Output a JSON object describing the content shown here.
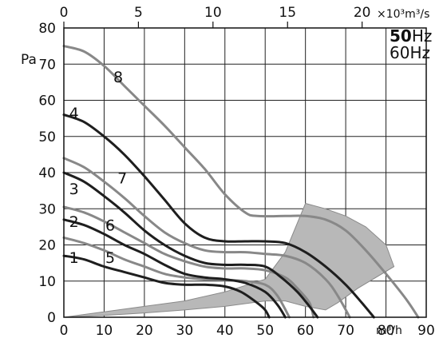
{
  "chart_data": {
    "type": "line",
    "ylabel": "Pa",
    "xunit": "m³/h",
    "top_unit": "×10³m³/s",
    "legend": [
      {
        "text": "50",
        "bold": true,
        "unit": "Hz"
      },
      {
        "text": "60",
        "bold": false,
        "unit": "Hz"
      }
    ],
    "xlim": [
      0,
      90
    ],
    "ylim": [
      0,
      80
    ],
    "x_ticks": [
      "0",
      "10",
      "20",
      "30",
      "40",
      "50",
      "60",
      "70",
      "80",
      "90"
    ],
    "y_ticks": [
      "0",
      "10",
      "20",
      "30",
      "40",
      "50",
      "60",
      "70",
      "80"
    ],
    "top_ticks": [
      "0",
      "5",
      "10",
      "15",
      "20"
    ],
    "top_tick_values": [
      0,
      5,
      10,
      15,
      20
    ],
    "top_axis_max": 24.3,
    "grid": true,
    "colors": {
      "dark": "#1e1e1e",
      "light": "#888888",
      "shade": "#b8b8b8"
    },
    "series": [
      {
        "name": "1",
        "style": "dark",
        "points": [
          [
            0,
            17
          ],
          [
            5,
            16
          ],
          [
            10,
            14
          ],
          [
            15,
            12.5
          ],
          [
            20,
            11
          ],
          [
            25,
            9.5
          ],
          [
            30,
            9
          ],
          [
            35,
            9
          ],
          [
            40,
            8.5
          ],
          [
            44,
            7
          ],
          [
            48,
            4
          ],
          [
            50,
            2
          ],
          [
            51,
            0
          ]
        ]
      },
      {
        "name": "2",
        "style": "dark",
        "points": [
          [
            0,
            27
          ],
          [
            5,
            25.5
          ],
          [
            10,
            23
          ],
          [
            15,
            20
          ],
          [
            20,
            17.5
          ],
          [
            25,
            14.5
          ],
          [
            30,
            12
          ],
          [
            35,
            11
          ],
          [
            40,
            10.5
          ],
          [
            45,
            9.5
          ],
          [
            50,
            7
          ],
          [
            53,
            3.5
          ],
          [
            55,
            0
          ]
        ]
      },
      {
        "name": "3",
        "style": "dark",
        "points": [
          [
            0,
            40
          ],
          [
            5,
            37.5
          ],
          [
            10,
            33.5
          ],
          [
            15,
            29
          ],
          [
            20,
            24
          ],
          [
            25,
            20
          ],
          [
            30,
            17
          ],
          [
            35,
            15
          ],
          [
            40,
            14.5
          ],
          [
            45,
            14.5
          ],
          [
            50,
            14
          ],
          [
            54,
            11
          ],
          [
            58,
            7
          ],
          [
            61,
            3
          ],
          [
            63,
            0
          ]
        ]
      },
      {
        "name": "4",
        "style": "dark",
        "points": [
          [
            0,
            56
          ],
          [
            5,
            54
          ],
          [
            10,
            50
          ],
          [
            15,
            45
          ],
          [
            20,
            39
          ],
          [
            25,
            32.5
          ],
          [
            30,
            26
          ],
          [
            35,
            22
          ],
          [
            40,
            21
          ],
          [
            45,
            21
          ],
          [
            50,
            21
          ],
          [
            55,
            20.5
          ],
          [
            60,
            18
          ],
          [
            65,
            14
          ],
          [
            70,
            9
          ],
          [
            74,
            4
          ],
          [
            77,
            0
          ]
        ]
      },
      {
        "name": "5",
        "style": "light",
        "points": [
          [
            0,
            22
          ],
          [
            5,
            20.5
          ],
          [
            10,
            18.5
          ],
          [
            15,
            16
          ],
          [
            20,
            14
          ],
          [
            25,
            12
          ],
          [
            30,
            11
          ],
          [
            35,
            10.5
          ],
          [
            40,
            10.3
          ],
          [
            45,
            10
          ],
          [
            50,
            9
          ],
          [
            53,
            6
          ],
          [
            56,
            0
          ]
        ]
      },
      {
        "name": "6",
        "style": "light",
        "points": [
          [
            0,
            30.5
          ],
          [
            5,
            29
          ],
          [
            10,
            26.5
          ],
          [
            15,
            23.5
          ],
          [
            20,
            20.5
          ],
          [
            25,
            17.5
          ],
          [
            30,
            15.5
          ],
          [
            35,
            14
          ],
          [
            40,
            13.5
          ],
          [
            45,
            13.5
          ],
          [
            50,
            13
          ],
          [
            55,
            11
          ],
          [
            58,
            8
          ],
          [
            61,
            4
          ],
          [
            62,
            0
          ]
        ]
      },
      {
        "name": "7",
        "style": "light",
        "points": [
          [
            0,
            44
          ],
          [
            5,
            41.5
          ],
          [
            10,
            37.5
          ],
          [
            15,
            33
          ],
          [
            20,
            28
          ],
          [
            25,
            23.5
          ],
          [
            30,
            20.5
          ],
          [
            35,
            18.5
          ],
          [
            40,
            18
          ],
          [
            45,
            18
          ],
          [
            50,
            17.5
          ],
          [
            55,
            17
          ],
          [
            60,
            15
          ],
          [
            65,
            10.5
          ],
          [
            68,
            6
          ],
          [
            71,
            0
          ]
        ]
      },
      {
        "name": "8",
        "style": "light",
        "points": [
          [
            0,
            75
          ],
          [
            5,
            73.5
          ],
          [
            10,
            69.5
          ],
          [
            15,
            64
          ],
          [
            20,
            58.5
          ],
          [
            25,
            53
          ],
          [
            30,
            47
          ],
          [
            35,
            41
          ],
          [
            40,
            34
          ],
          [
            45,
            29
          ],
          [
            48,
            28
          ],
          [
            55,
            28
          ],
          [
            60,
            28
          ],
          [
            65,
            27
          ],
          [
            70,
            24
          ],
          [
            75,
            18.5
          ],
          [
            80,
            12
          ],
          [
            85,
            5
          ],
          [
            88,
            0
          ]
        ]
      }
    ],
    "envelope": [
      [
        0,
        0
      ],
      [
        10,
        1.5
      ],
      [
        20,
        3
      ],
      [
        30,
        4.5
      ],
      [
        40,
        7
      ],
      [
        50,
        10.5
      ],
      [
        55,
        18
      ],
      [
        60,
        31.5
      ],
      [
        65,
        30
      ],
      [
        70,
        28
      ],
      [
        75,
        25
      ],
      [
        80,
        20
      ],
      [
        82,
        14
      ],
      [
        73,
        8
      ],
      [
        68,
        4
      ],
      [
        65,
        2
      ],
      [
        60,
        3
      ],
      [
        55,
        4.5
      ],
      [
        50,
        4.5
      ],
      [
        40,
        3
      ],
      [
        30,
        2
      ],
      [
        20,
        1.2
      ],
      [
        10,
        0.5
      ],
      [
        0,
        0
      ]
    ],
    "series_labels": [
      {
        "text": "1",
        "x": 2.5,
        "y": 15
      },
      {
        "text": "2",
        "x": 2.5,
        "y": 25
      },
      {
        "text": "3",
        "x": 2.5,
        "y": 34
      },
      {
        "text": "4",
        "x": 2.5,
        "y": 55
      },
      {
        "text": "5",
        "x": 11.5,
        "y": 15
      },
      {
        "text": "6",
        "x": 11.5,
        "y": 24
      },
      {
        "text": "7",
        "x": 14.5,
        "y": 37
      },
      {
        "text": "8",
        "x": 13.5,
        "y": 65
      }
    ]
  }
}
